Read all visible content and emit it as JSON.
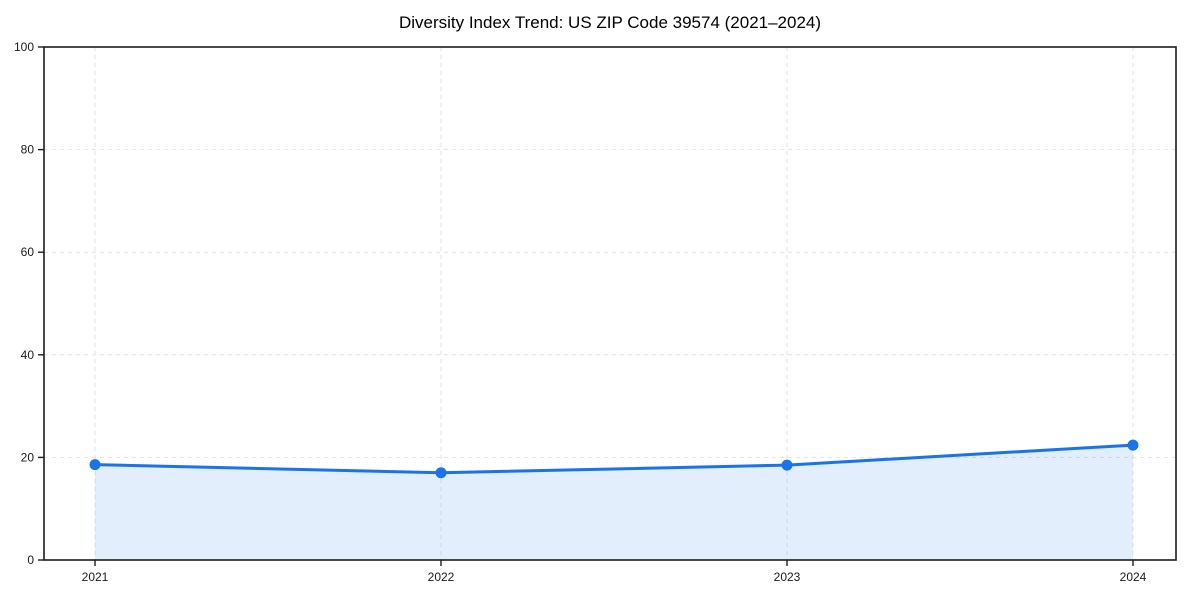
{
  "chart_data": {
    "type": "area",
    "title": "Diversity Index Trend: US ZIP Code 39574 (2021–2024)",
    "x": [
      2021,
      2022,
      2023,
      2024
    ],
    "xtick_labels": [
      "2021",
      "2022",
      "2023",
      "2024"
    ],
    "series": [
      {
        "name": "Diversity Index",
        "values": [
          18.6,
          17.0,
          18.5,
          22.4
        ]
      }
    ],
    "xlabel": "",
    "ylabel": "",
    "ylim": [
      0,
      100
    ],
    "yticks": [
      0,
      20,
      40,
      60,
      80,
      100
    ],
    "grid": "dashed-both-axes",
    "legend": "none",
    "colors": {
      "line": "#1a73e8",
      "marker": "#1a73e8",
      "fill": "#1a73e8",
      "fill_opacity": "0.12",
      "grid": "#e2e2e2",
      "spine": "#1c1c1c",
      "tick_label": "#1a1a1a",
      "title": "#000000",
      "background": "#ffffff"
    }
  }
}
